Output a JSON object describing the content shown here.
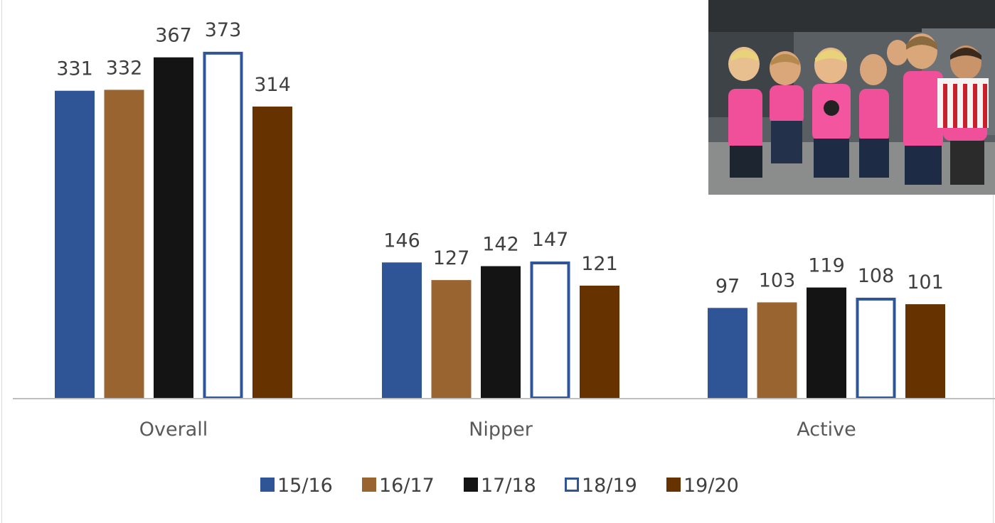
{
  "chart_data": {
    "type": "bar",
    "title": "",
    "xlabel": "",
    "ylabel": "",
    "categories": [
      "Overall",
      "Nipper",
      "Active"
    ],
    "ylim": [
      0,
      400
    ],
    "grid": false,
    "legend_position": "bottom",
    "data_labels": true,
    "series": [
      {
        "name": "15/16",
        "values": [
          331,
          146,
          97
        ],
        "color": "#2f5597",
        "style": "solid"
      },
      {
        "name": "16/17",
        "values": [
          332,
          127,
          103
        ],
        "color": "#9a6431",
        "style": "solid"
      },
      {
        "name": "17/18",
        "values": [
          367,
          142,
          119
        ],
        "color": "#141414",
        "style": "solid"
      },
      {
        "name": "18/19",
        "values": [
          373,
          147,
          108
        ],
        "color": "#2f5597",
        "style": "outline"
      },
      {
        "name": "19/20",
        "values": [
          314,
          121,
          101
        ],
        "color": "#663300",
        "style": "solid"
      }
    ]
  },
  "photo": {
    "subject": "group of children in pink rash vests",
    "icon": "photo-image"
  }
}
